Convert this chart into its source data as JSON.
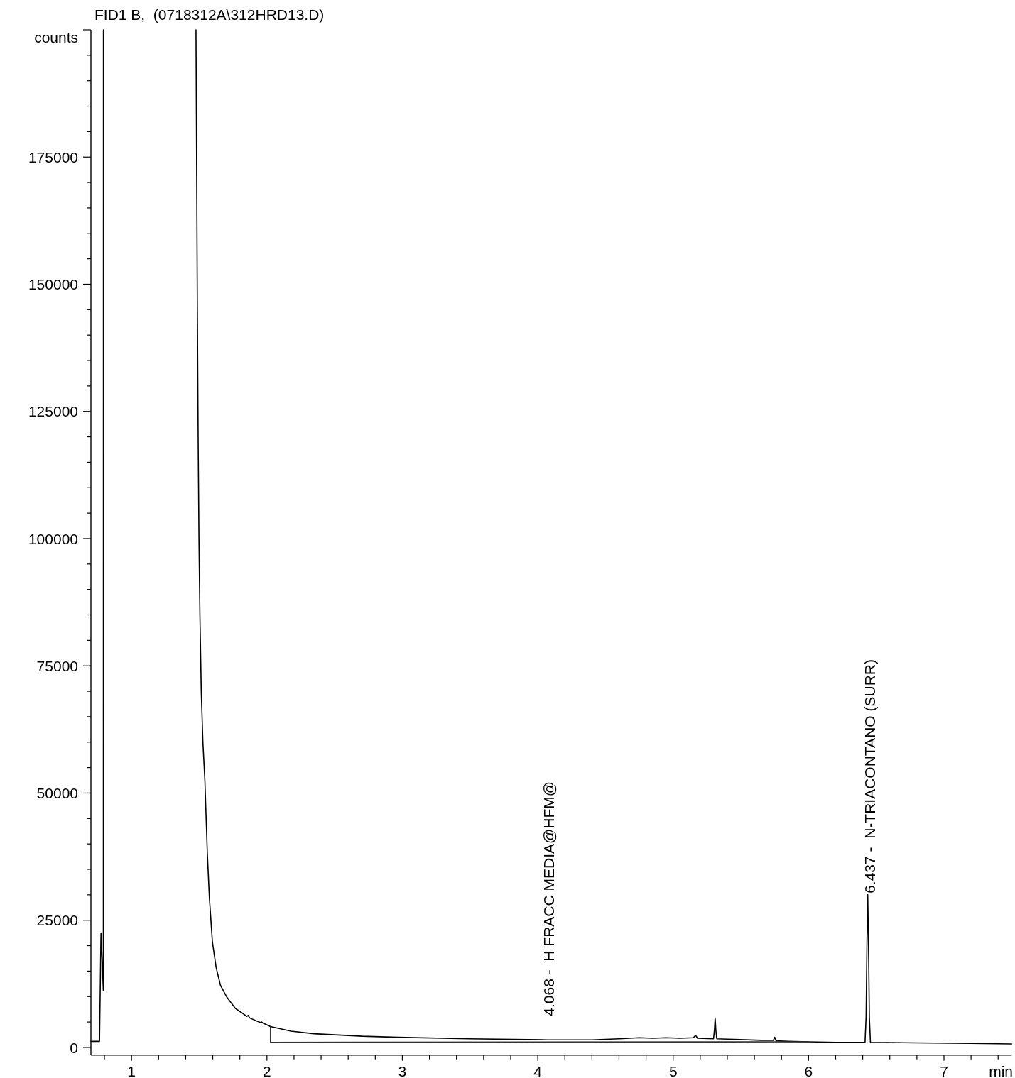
{
  "chart_data": {
    "type": "line",
    "title": "FID1 B,  (0718312A\\312HRD13.D)",
    "xlabel": "min",
    "ylabel": "counts",
    "xlim": [
      0.7,
      7.5
    ],
    "xticks": [
      {
        "value": 0.8,
        "label": null
      },
      1,
      {
        "value": 1.2,
        "label": null
      },
      {
        "value": 1.4,
        "label": null
      },
      {
        "value": 1.6,
        "label": null
      },
      {
        "value": 1.8,
        "label": null
      },
      2,
      {
        "value": 2.2,
        "label": null
      },
      {
        "value": 2.4,
        "label": null
      },
      {
        "value": 2.6,
        "label": null
      },
      {
        "value": 2.8,
        "label": null
      },
      3,
      {
        "value": 3.2,
        "label": null
      },
      {
        "value": 3.4,
        "label": null
      },
      {
        "value": 3.6,
        "label": null
      },
      {
        "value": 3.8,
        "label": null
      },
      4,
      {
        "value": 4.2,
        "label": null
      },
      {
        "value": 4.4,
        "label": null
      },
      {
        "value": 4.6,
        "label": null
      },
      {
        "value": 4.8,
        "label": null
      },
      5,
      {
        "value": 5.2,
        "label": null
      },
      {
        "value": 5.4,
        "label": null
      },
      {
        "value": 5.6,
        "label": null
      },
      {
        "value": 5.8,
        "label": null
      },
      6,
      {
        "value": 6.2,
        "label": null
      },
      {
        "value": 6.4,
        "label": null
      },
      {
        "value": 6.6,
        "label": null
      },
      {
        "value": 6.8,
        "label": null
      },
      7,
      {
        "value": 7.2,
        "label": null
      },
      {
        "value": 7.4,
        "label": null
      }
    ],
    "ylim": [
      -1500,
      200000
    ],
    "yticks": [
      0,
      {
        "value": 5000,
        "label": null
      },
      {
        "value": 10000,
        "label": null
      },
      {
        "value": 15000,
        "label": null
      },
      {
        "value": 20000,
        "label": null
      },
      25000,
      {
        "value": 30000,
        "label": null
      },
      {
        "value": 35000,
        "label": null
      },
      {
        "value": 40000,
        "label": null
      },
      {
        "value": 45000,
        "label": null
      },
      50000,
      {
        "value": 55000,
        "label": null
      },
      {
        "value": 60000,
        "label": null
      },
      {
        "value": 65000,
        "label": null
      },
      {
        "value": 70000,
        "label": null
      },
      75000,
      {
        "value": 80000,
        "label": null
      },
      {
        "value": 85000,
        "label": null
      },
      {
        "value": 90000,
        "label": null
      },
      {
        "value": 95000,
        "label": null
      },
      100000,
      {
        "value": 105000,
        "label": null
      },
      {
        "value": 110000,
        "label": null
      },
      {
        "value": 115000,
        "label": null
      },
      {
        "value": 120000,
        "label": null
      },
      125000,
      {
        "value": 130000,
        "label": null
      },
      {
        "value": 135000,
        "label": null
      },
      {
        "value": 140000,
        "label": null
      },
      {
        "value": 145000,
        "label": null
      },
      150000,
      {
        "value": 155000,
        "label": null
      },
      {
        "value": 160000,
        "label": null
      },
      {
        "value": 165000,
        "label": null
      },
      {
        "value": 170000,
        "label": null
      },
      175000,
      {
        "value": 180000,
        "label": null
      },
      {
        "value": 185000,
        "label": null
      },
      {
        "value": 190000,
        "label": null
      },
      {
        "value": 195000,
        "label": null
      },
      {
        "value": 200000,
        "label": null
      }
    ],
    "marker": "none",
    "line_style": "solid",
    "annotations": [
      {
        "text": "4.068 -  H FRACC MEDIA@HFM@",
        "x": 4.068,
        "y": 1500
      },
      {
        "text": "6.437 -  N-TRIACONTANO (SURR)",
        "x": 6.437,
        "y": 30000
      }
    ],
    "series": [
      {
        "color": "#000000",
        "x": [
          0.7,
          0.7636,
          0.7744,
          0.7918,
          0.7925,
          0.8,
          1.476,
          1.486,
          1.492,
          1.498,
          1.505,
          1.515,
          1.527,
          1.542,
          1.549,
          1.56,
          1.575,
          1.597,
          1.625,
          1.657,
          1.701,
          1.766,
          1.852,
          1.862,
          1.872,
          1.95,
          1.961,
          1.97,
          2.026,
          2.178,
          2.347,
          2.705,
          2.967,
          3.491,
          4.068,
          4.4,
          4.6,
          4.75,
          4.85,
          4.95,
          5.05,
          5.15,
          5.165,
          5.18,
          5.298,
          5.305,
          5.31,
          5.315,
          5.322,
          5.45,
          5.65,
          5.74,
          5.75,
          5.76,
          5.85,
          6.0,
          6.2,
          6.417,
          6.425,
          6.431,
          6.437,
          6.443,
          6.449,
          6.457,
          6.8,
          7.2,
          7.5
        ],
        "values": [
          1200,
          1200,
          22500,
          11200,
          200000,
          null,
          200000,
          146000,
          120000,
          100000,
          85000,
          70000,
          60000,
          52300,
          46600,
          38000,
          29400,
          20800,
          15700,
          12200,
          10000,
          7700,
          6100,
          6300,
          5800,
          4900,
          5000,
          4800,
          4100,
          3200,
          2700,
          2200,
          2000,
          1700,
          1500,
          1500,
          1700,
          1900,
          1800,
          1900,
          1800,
          1900,
          2400,
          1800,
          1700,
          3500,
          5800,
          3500,
          1700,
          1600,
          1400,
          1400,
          2000,
          1300,
          1200,
          1100,
          1000,
          1000,
          6000,
          20000,
          30000,
          20000,
          6000,
          1000,
          900,
          800,
          700
        ]
      },
      {
        "color": "#333333",
        "x": [
          2.026,
          2.026,
          6.0
        ],
        "values": [
          4100,
          1000,
          1100
        ]
      }
    ]
  }
}
